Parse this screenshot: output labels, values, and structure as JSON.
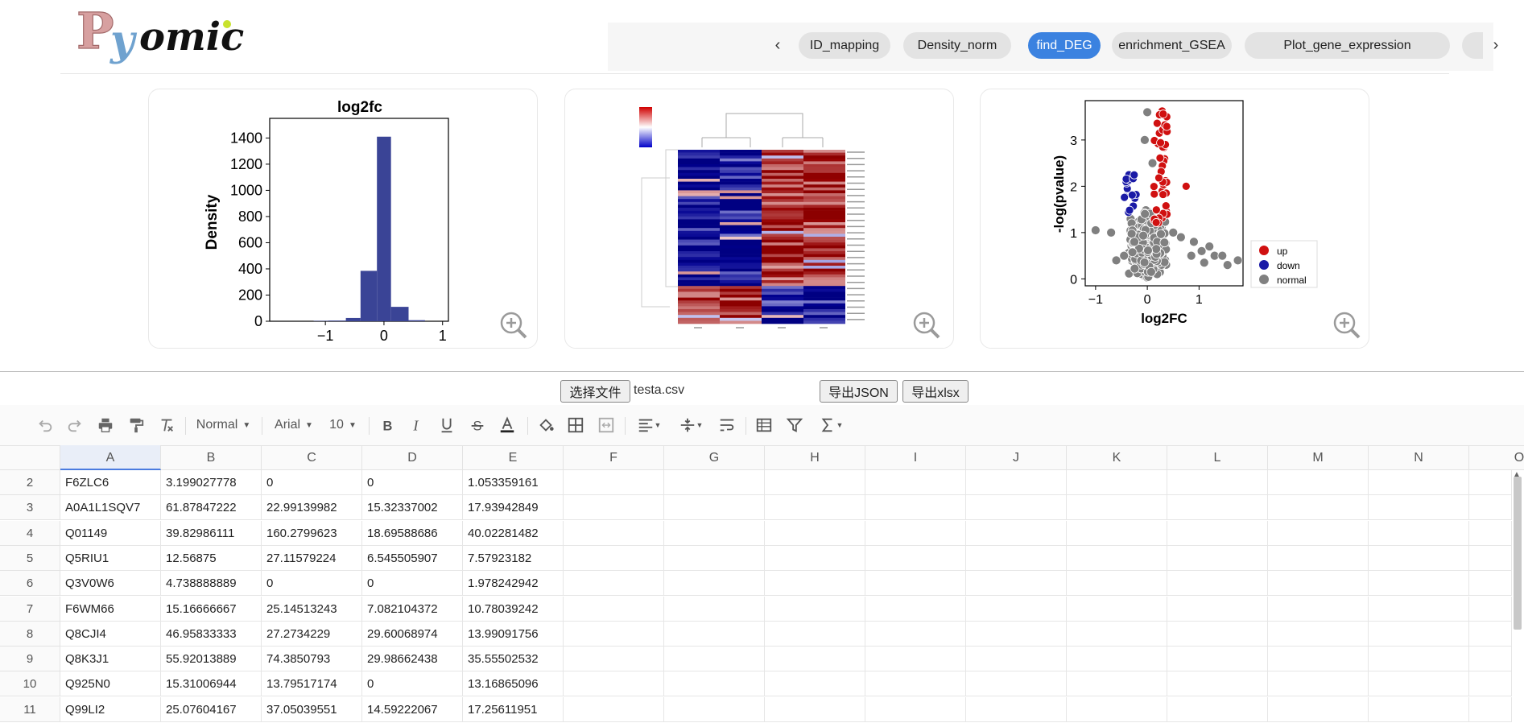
{
  "app": {
    "logo_text": "Pyomic"
  },
  "tabs": {
    "prev_label": "‹",
    "next_label": "›",
    "items": [
      "ID_mapping",
      "Density_norm",
      "find_DEG",
      "enrichment_GSEA",
      "Plot_gene_expression"
    ],
    "active": "find_DEG"
  },
  "panels": {
    "histogram": {
      "chart_data": {
        "type": "bar",
        "title": "log2fc",
        "ylabel": "Density",
        "xlabel": "",
        "x_ticks": [
          "−1",
          "0",
          "1"
        ],
        "y_ticks": [
          "0",
          "200",
          "400",
          "600",
          "800",
          "1000",
          "1200",
          "1400"
        ],
        "ylim": [
          0,
          1550
        ],
        "xlim": [
          -1.95,
          1.1
        ],
        "bins": [
          {
            "x0": -1.2,
            "x1": -0.95,
            "value": 3
          },
          {
            "x0": -0.95,
            "x1": -0.65,
            "value": 5
          },
          {
            "x0": -0.65,
            "x1": -0.4,
            "value": 25
          },
          {
            "x0": -0.4,
            "x1": -0.12,
            "value": 385
          },
          {
            "x0": -0.12,
            "x1": 0.12,
            "value": 1410
          },
          {
            "x0": 0.12,
            "x1": 0.42,
            "value": 110
          },
          {
            "x0": 0.42,
            "x1": 0.7,
            "value": 8
          }
        ],
        "bar_color": "#3a4496"
      }
    },
    "heatmap": {
      "chart_data": {
        "type": "heatmap",
        "columns": 4,
        "rows": 28,
        "colormap": [
          "#0000c8",
          "#ffffff",
          "#d00000"
        ]
      }
    },
    "volcano": {
      "chart_data": {
        "type": "scatter",
        "xlabel": "log2FC",
        "ylabel": "-log(pvalue)",
        "x_ticks": [
          "−1",
          "0",
          "1"
        ],
        "y_ticks": [
          "0",
          "1",
          "2",
          "3"
        ],
        "legend": [
          {
            "label": "up",
            "color": "#d01010"
          },
          {
            "label": "down",
            "color": "#1a1aa6"
          },
          {
            "label": "normal",
            "color": "#808080"
          }
        ]
      }
    }
  },
  "file": {
    "choose_label": "选择文件",
    "file_name": "testa.csv",
    "export_json_label": "导出JSON",
    "export_xlsx_label": "导出xlsx"
  },
  "toolbar": {
    "style_select": "Normal",
    "font_select": "Arial",
    "size_select": "10"
  },
  "sheet": {
    "columns": [
      "A",
      "B",
      "C",
      "D",
      "E",
      "F",
      "G",
      "H",
      "I",
      "J",
      "K",
      "L",
      "M",
      "N",
      "O"
    ],
    "rows": [
      {
        "num": "2",
        "cells": [
          "F6ZLC6",
          "3.199027778",
          "0",
          "0",
          "1.053359161"
        ]
      },
      {
        "num": "3",
        "cells": [
          "A0A1L1SQV7",
          "61.87847222",
          "22.99139982",
          "15.32337002",
          "17.93942849"
        ]
      },
      {
        "num": "4",
        "cells": [
          "Q01149",
          "39.82986111",
          "160.2799623",
          "18.69588686",
          "40.02281482"
        ]
      },
      {
        "num": "5",
        "cells": [
          "Q5RIU1",
          "12.56875",
          "27.11579224",
          "6.545505907",
          "7.57923182"
        ]
      },
      {
        "num": "6",
        "cells": [
          "Q3V0W6",
          "4.738888889",
          "0",
          "0",
          "1.978242942"
        ]
      },
      {
        "num": "7",
        "cells": [
          "F6WM66",
          "15.16666667",
          "25.14513243",
          "7.082104372",
          "10.78039242"
        ]
      },
      {
        "num": "8",
        "cells": [
          "Q8CJI4",
          "46.95833333",
          "27.2734229",
          "29.60068974",
          "13.99091756"
        ]
      },
      {
        "num": "9",
        "cells": [
          "Q8K3J1",
          "55.92013889",
          "74.3850793",
          "29.98662438",
          "35.55502532"
        ]
      },
      {
        "num": "10",
        "cells": [
          "Q925N0",
          "15.31006944",
          "13.79517174",
          "0",
          "13.16865096"
        ]
      },
      {
        "num": "11",
        "cells": [
          "Q99LI2",
          "25.07604167",
          "37.05039551",
          "14.59222067",
          "17.25611951"
        ]
      }
    ]
  }
}
